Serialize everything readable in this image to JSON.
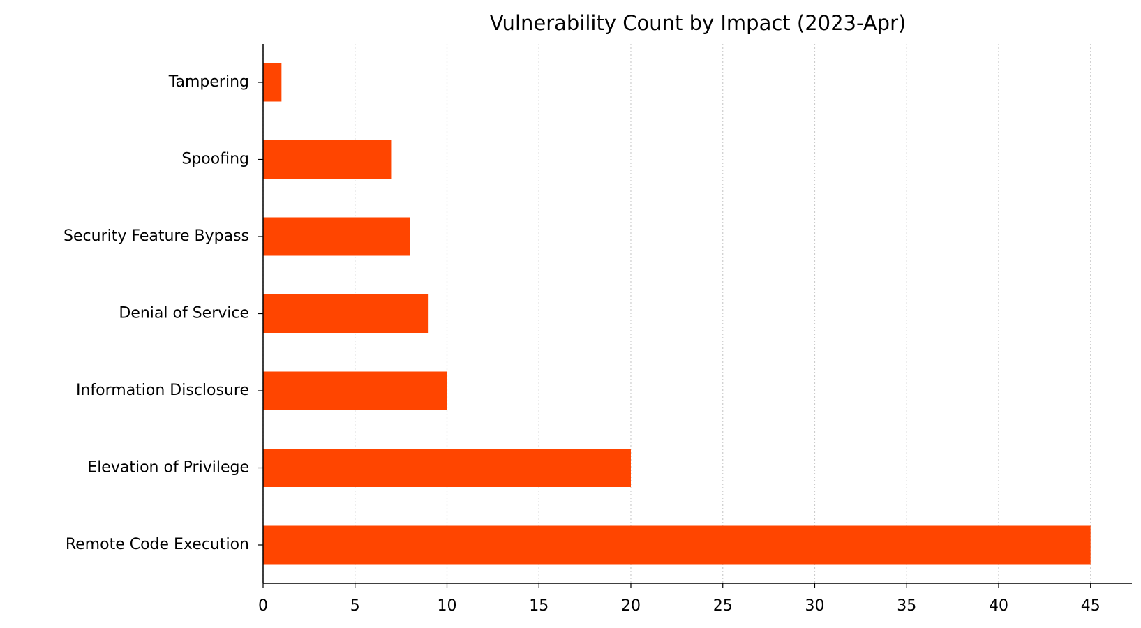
{
  "chart_data": {
    "type": "barh",
    "title": "Vulnerability Count by Impact (2023-Apr)",
    "categories": [
      "Remote Code Execution",
      "Elevation of Privilege",
      "Information Disclosure",
      "Denial of Service",
      "Security Feature Bypass",
      "Spoofing",
      "Tampering"
    ],
    "values": [
      45,
      20,
      10,
      9,
      8,
      7,
      1
    ],
    "color": "#ff4500",
    "xlim": [
      0,
      47.25
    ],
    "xticks": [
      0,
      5,
      10,
      15,
      20,
      25,
      30,
      35,
      40,
      45
    ],
    "grid": true
  }
}
